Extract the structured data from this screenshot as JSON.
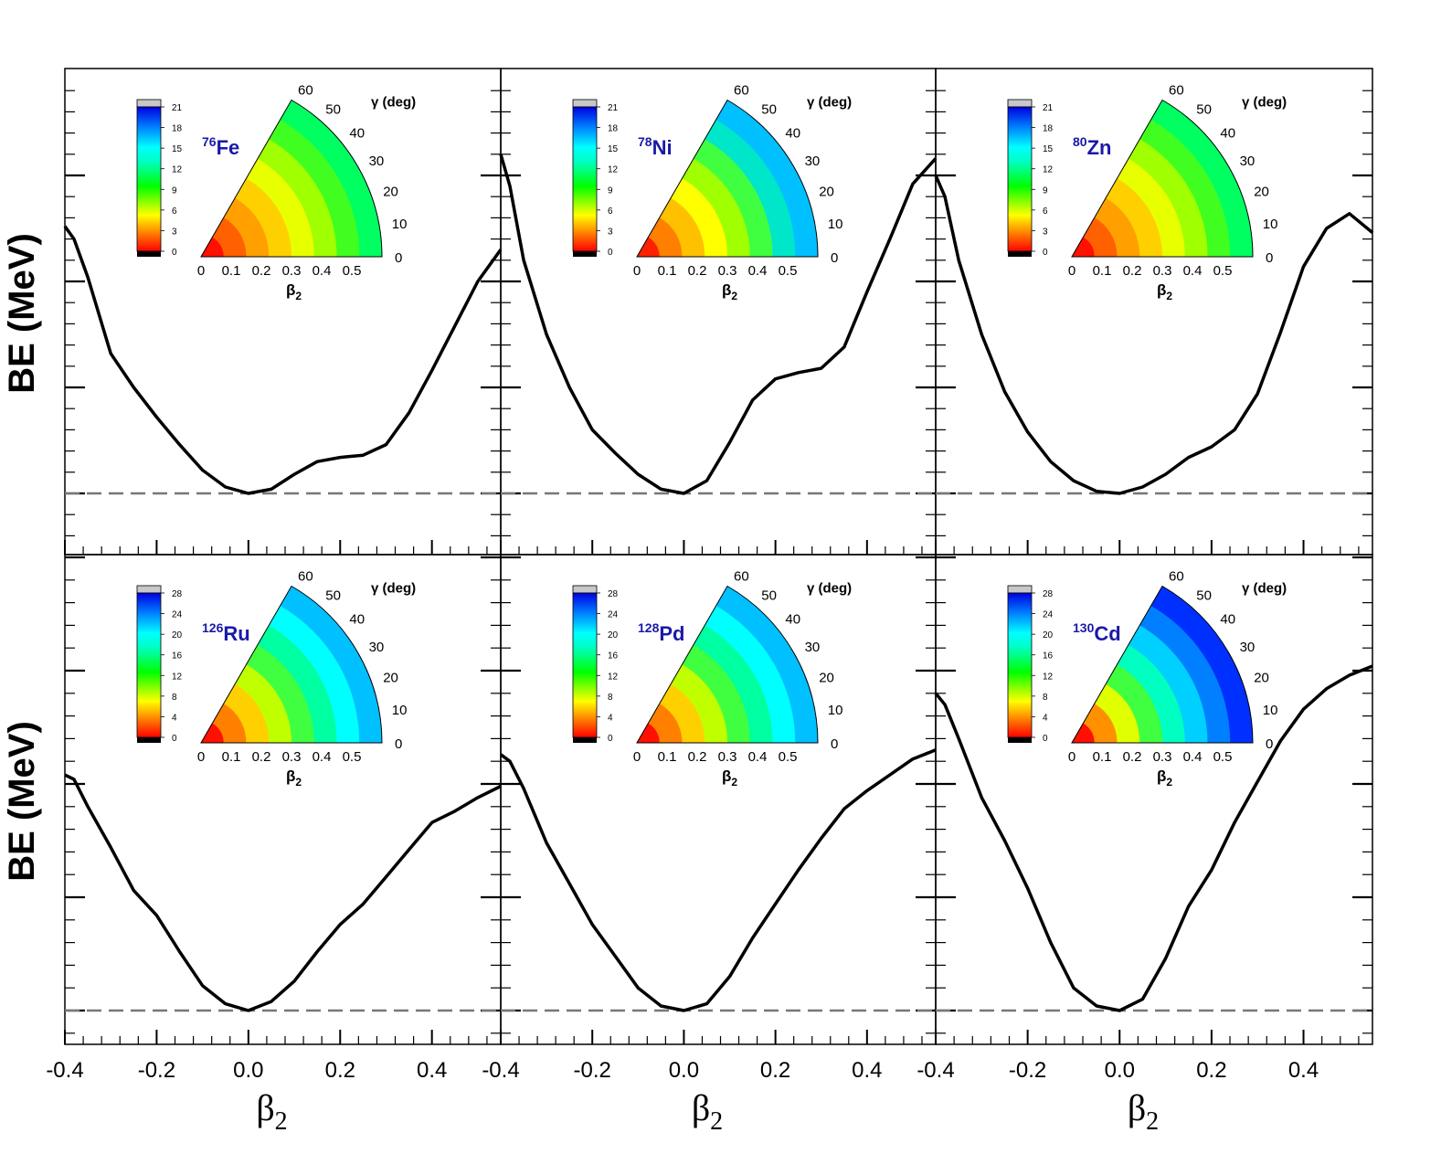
{
  "figure": {
    "y_axis_label": "BE (MeV)",
    "x_axis_label": "β",
    "x_axis_label_sub": "2"
  },
  "insets_common": {
    "gamma_label": "γ (deg)",
    "gamma_ticks": [
      "0",
      "10",
      "20",
      "30",
      "40",
      "50",
      "60"
    ],
    "beta_ticks": [
      "0",
      "0.1",
      "0.2",
      "0.3",
      "0.4",
      "0.5"
    ],
    "beta_label": "β",
    "beta_label_sub": "2"
  },
  "chart_data": [
    {
      "type": "line",
      "panel": "top-left",
      "nucleus": {
        "mass": "76",
        "symbol": "Fe"
      },
      "xlabel": "β2",
      "ylabel": "BE (MeV)",
      "xlim": [
        -0.4,
        0.55
      ],
      "ylim": [
        -3,
        20
      ],
      "x": [
        -0.4,
        -0.38,
        -0.35,
        -0.3,
        -0.25,
        -0.2,
        -0.15,
        -0.1,
        -0.05,
        0.0,
        0.05,
        0.1,
        0.15,
        0.2,
        0.25,
        0.3,
        0.35,
        0.4,
        0.45,
        0.5,
        0.55
      ],
      "y": [
        12.6,
        12.0,
        10.2,
        6.6,
        5.0,
        3.6,
        2.3,
        1.1,
        0.3,
        0.0,
        0.2,
        0.9,
        1.5,
        1.7,
        1.8,
        2.3,
        3.8,
        5.8,
        7.9,
        10.0,
        11.5
      ],
      "reference_line": {
        "y": 0,
        "style": "dashed"
      },
      "colorbar": {
        "labels": [
          "0",
          "3",
          "6",
          "9",
          "12",
          "15",
          "18",
          "21"
        ]
      }
    },
    {
      "type": "line",
      "panel": "top-middle",
      "nucleus": {
        "mass": "78",
        "symbol": "Ni"
      },
      "xlabel": "β2",
      "ylabel": "BE (MeV)",
      "xlim": [
        -0.4,
        0.55
      ],
      "ylim": [
        -3,
        20
      ],
      "x": [
        -0.4,
        -0.38,
        -0.35,
        -0.3,
        -0.25,
        -0.2,
        -0.15,
        -0.1,
        -0.05,
        0.0,
        0.05,
        0.1,
        0.15,
        0.2,
        0.25,
        0.3,
        0.35,
        0.4,
        0.45,
        0.5,
        0.55
      ],
      "y": [
        16.0,
        14.5,
        11.0,
        7.5,
        5.0,
        3.0,
        1.9,
        0.9,
        0.2,
        0.0,
        0.6,
        2.4,
        4.4,
        5.4,
        5.7,
        5.9,
        6.9,
        9.5,
        12.0,
        14.6,
        15.8
      ],
      "reference_line": {
        "y": 0,
        "style": "dashed"
      },
      "colorbar": {
        "labels": [
          "0",
          "3",
          "6",
          "9",
          "12",
          "15",
          "18",
          "21"
        ]
      }
    },
    {
      "type": "line",
      "panel": "top-right",
      "nucleus": {
        "mass": "80",
        "symbol": "Zn"
      },
      "xlabel": "β2",
      "ylabel": "BE (MeV)",
      "xlim": [
        -0.4,
        0.55
      ],
      "ylim": [
        -3,
        20
      ],
      "x": [
        -0.4,
        -0.38,
        -0.35,
        -0.3,
        -0.25,
        -0.2,
        -0.15,
        -0.1,
        -0.05,
        0.0,
        0.05,
        0.1,
        0.15,
        0.2,
        0.25,
        0.3,
        0.35,
        0.4,
        0.45,
        0.5,
        0.55
      ],
      "y": [
        15.0,
        14.0,
        11.0,
        7.5,
        4.8,
        2.9,
        1.5,
        0.6,
        0.1,
        0.0,
        0.3,
        0.9,
        1.7,
        2.2,
        3.0,
        4.7,
        7.6,
        10.7,
        12.5,
        13.2,
        12.3
      ],
      "reference_line": {
        "y": 0,
        "style": "dashed"
      },
      "colorbar": {
        "labels": [
          "0",
          "3",
          "6",
          "9",
          "12",
          "15",
          "18",
          "21"
        ]
      }
    },
    {
      "type": "line",
      "panel": "bottom-left",
      "nucleus": {
        "mass": "126",
        "symbol": "Ru"
      },
      "xlabel": "β2",
      "ylabel": "BE (MeV)",
      "xlim": [
        -0.4,
        0.55
      ],
      "ylim": [
        -3,
        20
      ],
      "x": [
        -0.4,
        -0.38,
        -0.35,
        -0.3,
        -0.25,
        -0.2,
        -0.15,
        -0.1,
        -0.05,
        0.0,
        0.05,
        0.1,
        0.15,
        0.2,
        0.25,
        0.3,
        0.35,
        0.4,
        0.45,
        0.5,
        0.55
      ],
      "y": [
        10.4,
        10.2,
        9.0,
        7.2,
        5.3,
        4.2,
        2.6,
        1.1,
        0.3,
        0.0,
        0.4,
        1.3,
        2.6,
        3.8,
        4.7,
        5.9,
        7.1,
        8.3,
        8.8,
        9.4,
        9.9
      ],
      "reference_line": {
        "y": 0,
        "style": "dashed"
      },
      "colorbar": {
        "labels": [
          "0",
          "4",
          "8",
          "12",
          "16",
          "20",
          "24",
          "28"
        ]
      }
    },
    {
      "type": "line",
      "panel": "bottom-middle",
      "nucleus": {
        "mass": "128",
        "symbol": "Pd"
      },
      "xlabel": "β2",
      "ylabel": "BE (MeV)",
      "xlim": [
        -0.4,
        0.55
      ],
      "ylim": [
        -3,
        20
      ],
      "x": [
        -0.4,
        -0.38,
        -0.35,
        -0.3,
        -0.25,
        -0.2,
        -0.15,
        -0.1,
        -0.05,
        0.0,
        0.05,
        0.1,
        0.15,
        0.2,
        0.25,
        0.3,
        0.35,
        0.4,
        0.45,
        0.5,
        0.55
      ],
      "y": [
        11.3,
        11.0,
        9.8,
        7.4,
        5.6,
        3.8,
        2.4,
        1.0,
        0.2,
        0.0,
        0.3,
        1.5,
        3.2,
        4.7,
        6.2,
        7.6,
        8.9,
        9.7,
        10.4,
        11.1,
        11.5
      ],
      "reference_line": {
        "y": 0,
        "style": "dashed"
      },
      "colorbar": {
        "labels": [
          "0",
          "4",
          "8",
          "12",
          "16",
          "20",
          "24",
          "28"
        ]
      }
    },
    {
      "type": "line",
      "panel": "bottom-right",
      "nucleus": {
        "mass": "130",
        "symbol": "Cd"
      },
      "xlabel": "β2",
      "ylabel": "BE (MeV)",
      "xlim": [
        -0.4,
        0.55
      ],
      "ylim": [
        -3,
        20
      ],
      "x": [
        -0.4,
        -0.38,
        -0.35,
        -0.3,
        -0.25,
        -0.2,
        -0.15,
        -0.1,
        -0.05,
        0.0,
        0.05,
        0.1,
        0.15,
        0.2,
        0.25,
        0.3,
        0.35,
        0.4,
        0.45,
        0.5,
        0.55
      ],
      "y": [
        14.0,
        13.5,
        12.0,
        9.4,
        7.5,
        5.4,
        3.0,
        1.0,
        0.2,
        0.0,
        0.5,
        2.3,
        4.6,
        6.2,
        8.3,
        10.1,
        11.9,
        13.3,
        14.2,
        14.8,
        15.2
      ],
      "reference_line": {
        "y": 0,
        "style": "dashed"
      },
      "colorbar": {
        "labels": [
          "0",
          "4",
          "8",
          "12",
          "16",
          "20",
          "24",
          "28"
        ]
      }
    }
  ],
  "x_tick_labels": [
    "-0.4",
    "-0.2",
    "0.0",
    "0.2",
    "0.4"
  ]
}
